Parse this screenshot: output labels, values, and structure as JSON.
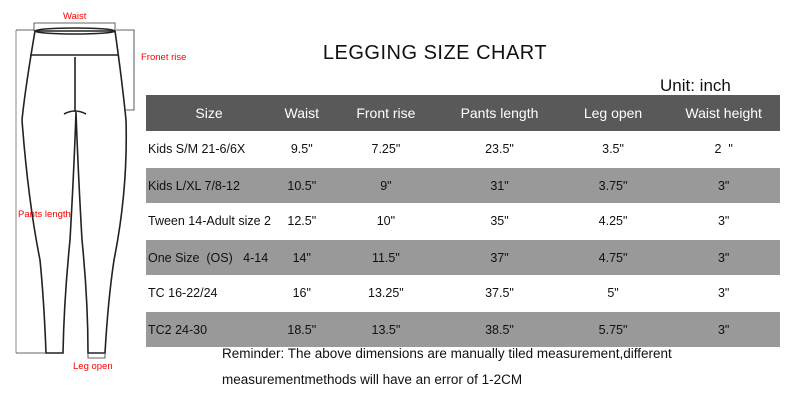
{
  "title": "LEGGING SIZE CHART",
  "unit": "Unit: inch",
  "diagram": {
    "waist": "Waist",
    "front_rise": "Fronet rise",
    "pants_length": "Pants length",
    "leg_open": "Leg open"
  },
  "table": {
    "headers": [
      "Size",
      "Waist",
      "Front rise",
      "Pants length",
      "Leg open",
      "Waist height"
    ],
    "rows": [
      [
        "Kids S/M 21-6/6X",
        "9.5\"",
        "7.25\"",
        "23.5\"",
        "3.5\"",
        "2  \""
      ],
      [
        "Kids L/XL 7/8-12",
        "10.5\"",
        "9\"",
        "31\"",
        "3.75\"",
        "3\""
      ],
      [
        "Tween 14-Adult size 2",
        "12.5\"",
        "10\"",
        "35\"",
        "4.25\"",
        "3\""
      ],
      [
        "One Size  (OS)   4-14",
        "14\"",
        "11.5\"",
        "37\"",
        "4.75\"",
        "3\""
      ],
      [
        "TC 16-22/24",
        "16\"",
        "13.25\"",
        "37.5\"",
        "5\"",
        "3\""
      ],
      [
        "TC2 24-30",
        "18.5\"",
        "13.5\"",
        "38.5\"",
        "5.75\"",
        "3\""
      ]
    ]
  },
  "reminder": [
    "Reminder: The above dimensions are manually tiled measurement,different",
    "measurementmethods will have an error of 1-2CM"
  ]
}
